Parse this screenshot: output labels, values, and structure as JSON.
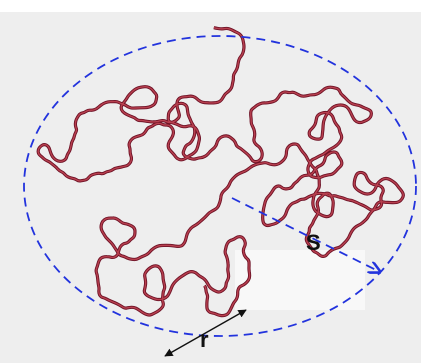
{
  "labels": {
    "size": "S",
    "segment": "r"
  }
}
